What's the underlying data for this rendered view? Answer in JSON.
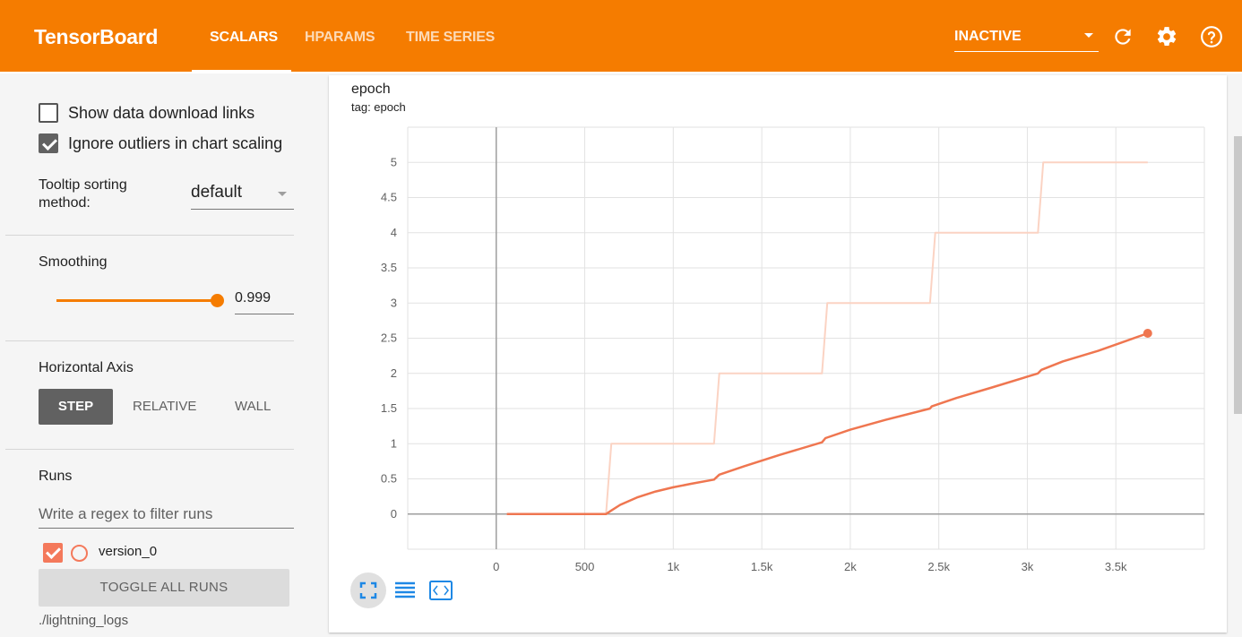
{
  "header": {
    "brand": "TensorBoard",
    "tabs": [
      {
        "label": "SCALARS",
        "active": true
      },
      {
        "label": "HPARAMS",
        "active": false
      },
      {
        "label": "TIME SERIES",
        "active": false
      }
    ],
    "status": "INACTIVE",
    "icons": [
      "refresh-icon",
      "settings-icon",
      "help-icon"
    ],
    "accent_color": "#f57c00"
  },
  "sidebar": {
    "show_download_links": {
      "label": "Show data download links",
      "checked": false
    },
    "ignore_outliers": {
      "label": "Ignore outliers in chart scaling",
      "checked": true
    },
    "tooltip_sorting": {
      "label_line1": "Tooltip sorting",
      "label_line2": "method:",
      "value": "default"
    },
    "smoothing": {
      "label": "Smoothing",
      "value": "0.999"
    },
    "horizontal_axis": {
      "label": "Horizontal Axis",
      "options": [
        "STEP",
        "RELATIVE",
        "WALL"
      ],
      "selected": "STEP"
    },
    "runs": {
      "label": "Runs",
      "filter_placeholder": "Write a regex to filter runs",
      "items": [
        {
          "name": "version_0",
          "checked": true,
          "color": "#f4795b"
        }
      ],
      "toggle_all_label": "TOGGLE ALL RUNS",
      "logdir": "./lightning_logs"
    }
  },
  "card": {
    "title": "epoch",
    "tag": "tag: epoch",
    "actions": [
      "fullscreen-icon",
      "list-icon",
      "fit-domain-icon"
    ]
  },
  "chart_data": {
    "type": "line",
    "title": "epoch",
    "xlabel": "",
    "ylabel": "",
    "xlim": [
      -500,
      4000
    ],
    "ylim": [
      -0.5,
      5.5
    ],
    "x_ticks": [
      0,
      500,
      1000,
      1500,
      2000,
      2500,
      3000,
      3500
    ],
    "x_tick_labels": [
      "0",
      "500",
      "1k",
      "1.5k",
      "2k",
      "2.5k",
      "3k",
      "3.5k"
    ],
    "y_ticks": [
      0,
      0.5,
      1,
      1.5,
      2,
      2.5,
      3,
      3.5,
      4,
      4.5,
      5
    ],
    "y_tick_labels": [
      "0",
      "0.5",
      "1",
      "1.5",
      "2",
      "2.5",
      "3",
      "3.5",
      "4",
      "4.5",
      "5"
    ],
    "grid": true,
    "series": [
      {
        "name": "version_0",
        "role": "raw",
        "color": "#fbd3c3",
        "x": [
          60,
          620,
          650,
          1230,
          1260,
          1840,
          1870,
          2450,
          2480,
          3060,
          3090,
          3680
        ],
        "y": [
          0,
          0,
          1,
          1,
          2,
          2,
          3,
          3,
          4,
          4,
          5,
          5
        ]
      },
      {
        "name": "version_0",
        "role": "smoothed",
        "color": "#ef7650",
        "x": [
          60,
          300,
          620,
          650,
          700,
          800,
          900,
          1000,
          1100,
          1230,
          1260,
          1400,
          1600,
          1840,
          1860,
          2000,
          2200,
          2450,
          2460,
          2600,
          2800,
          3060,
          3080,
          3200,
          3400,
          3680
        ],
        "y": [
          0,
          0,
          0,
          0.05,
          0.13,
          0.24,
          0.32,
          0.38,
          0.43,
          0.49,
          0.56,
          0.68,
          0.84,
          1.02,
          1.08,
          1.2,
          1.34,
          1.5,
          1.53,
          1.65,
          1.8,
          2.0,
          2.05,
          2.17,
          2.32,
          2.57
        ]
      }
    ],
    "last_point": {
      "x": 3680,
      "y": 2.57
    }
  }
}
